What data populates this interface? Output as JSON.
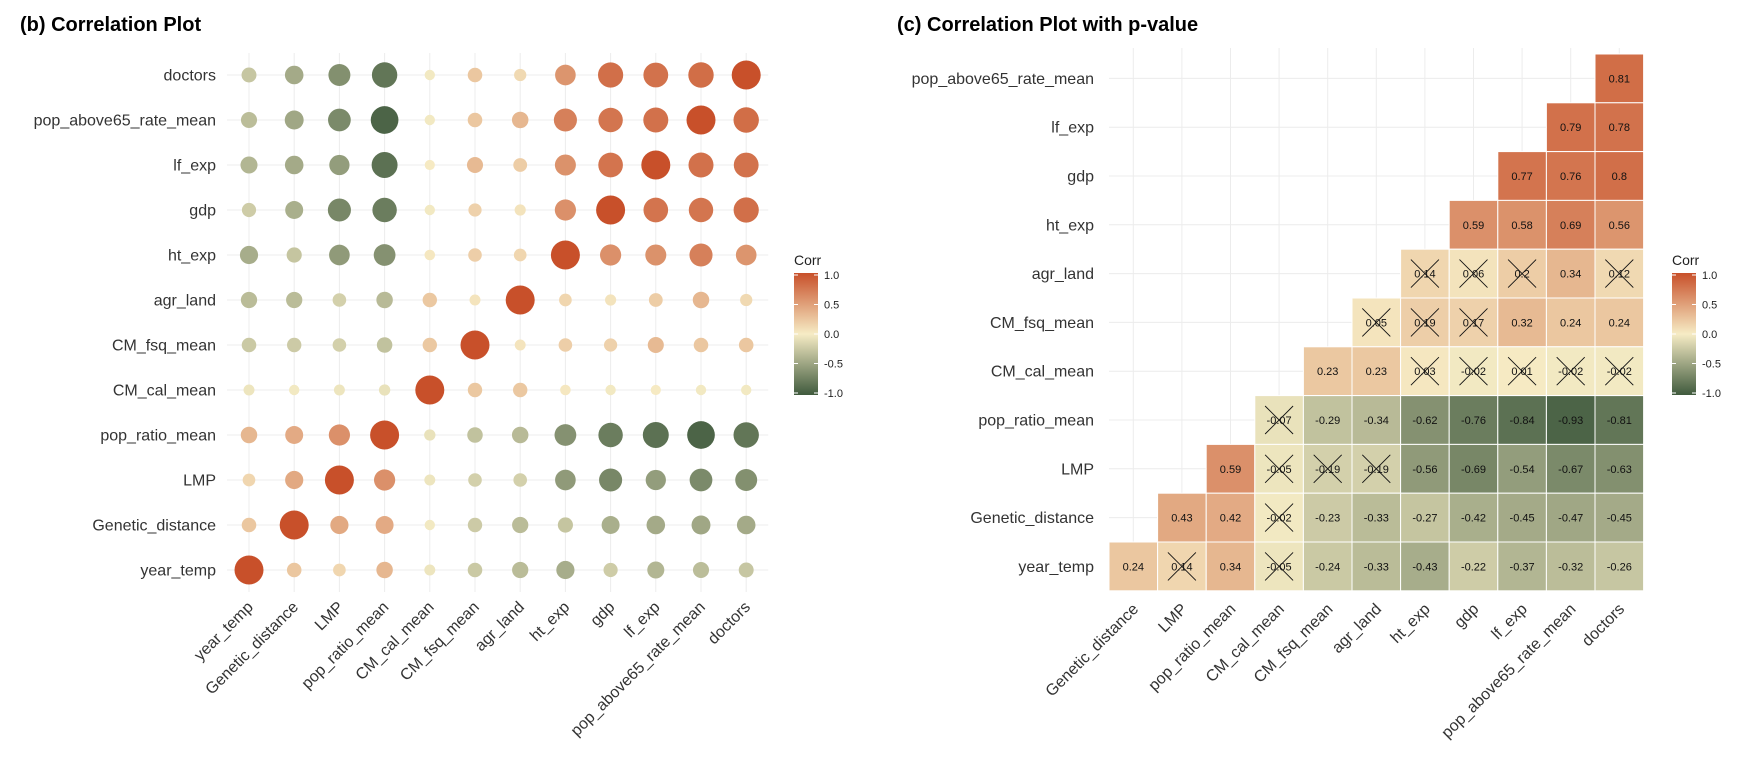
{
  "colors": {
    "low": "#3f5a3d",
    "mid": "#f6ecc5",
    "high": "#c8502a",
    "grid": "#ececec"
  },
  "chart_data": [
    {
      "panel": "b",
      "type": "heatmap",
      "title": "(b) Correlation Plot",
      "rows": [
        "doctors",
        "pop_above65_rate_mean",
        "lf_exp",
        "gdp",
        "ht_exp",
        "agr_land",
        "CM_fsq_mean",
        "CM_cal_mean",
        "pop_ratio_mean",
        "LMP",
        "Genetic_distance",
        "year_temp"
      ],
      "columns": [
        "year_temp",
        "Genetic_distance",
        "LMP",
        "pop_ratio_mean",
        "CM_cal_mean",
        "CM_fsq_mean",
        "agr_land",
        "ht_exp",
        "gdp",
        "lf_exp",
        "pop_above65_rate_mean",
        "doctors"
      ],
      "values": [
        [
          -0.26,
          -0.45,
          -0.63,
          -0.81,
          -0.02,
          0.24,
          0.12,
          0.56,
          0.8,
          0.78,
          0.81,
          1.0
        ],
        [
          -0.32,
          -0.47,
          -0.67,
          -0.93,
          -0.02,
          0.24,
          0.34,
          0.69,
          0.76,
          0.79,
          1.0,
          0.81
        ],
        [
          -0.37,
          -0.45,
          -0.54,
          -0.84,
          0.01,
          0.32,
          0.2,
          0.58,
          0.77,
          1.0,
          0.79,
          0.78
        ],
        [
          -0.22,
          -0.42,
          -0.69,
          -0.76,
          -0.02,
          0.17,
          0.06,
          0.59,
          1.0,
          0.77,
          0.76,
          0.8
        ],
        [
          -0.43,
          -0.27,
          -0.56,
          -0.62,
          0.03,
          0.19,
          0.14,
          1.0,
          0.59,
          0.58,
          0.69,
          0.56
        ],
        [
          -0.33,
          -0.33,
          -0.19,
          -0.34,
          0.23,
          0.05,
          1.0,
          0.14,
          0.06,
          0.2,
          0.34,
          0.12
        ],
        [
          -0.24,
          -0.23,
          -0.19,
          -0.29,
          0.23,
          1.0,
          0.05,
          0.19,
          0.17,
          0.32,
          0.24,
          0.24
        ],
        [
          -0.05,
          -0.02,
          -0.05,
          -0.07,
          1.0,
          0.23,
          0.23,
          0.03,
          -0.02,
          0.01,
          -0.02,
          -0.02
        ],
        [
          0.34,
          0.42,
          0.59,
          1.0,
          -0.07,
          -0.29,
          -0.34,
          -0.62,
          -0.76,
          -0.84,
          -0.93,
          -0.81
        ],
        [
          0.14,
          0.43,
          1.0,
          0.59,
          -0.05,
          -0.19,
          -0.19,
          -0.56,
          -0.69,
          -0.54,
          -0.67,
          -0.63
        ],
        [
          0.24,
          1.0,
          0.43,
          0.42,
          -0.02,
          -0.23,
          -0.33,
          -0.27,
          -0.42,
          -0.45,
          -0.47,
          -0.45
        ],
        [
          1.0,
          0.24,
          0.14,
          0.34,
          -0.05,
          -0.24,
          -0.33,
          -0.43,
          -0.22,
          -0.37,
          -0.32,
          -0.26
        ]
      ],
      "legend": {
        "title": "Corr",
        "ticks": [
          "1.0",
          "0.5",
          "0.0",
          "-0.5",
          "-1.0"
        ],
        "range": [
          -1,
          1
        ]
      }
    },
    {
      "panel": "c",
      "type": "heatmap",
      "title": "(c) Correlation Plot with p-value",
      "rows": [
        "pop_above65_rate_mean",
        "lf_exp",
        "gdp",
        "ht_exp",
        "agr_land",
        "CM_fsq_mean",
        "CM_cal_mean",
        "pop_ratio_mean",
        "LMP",
        "Genetic_distance",
        "year_temp"
      ],
      "columns": [
        "Genetic_distance",
        "LMP",
        "pop_ratio_mean",
        "CM_cal_mean",
        "CM_fsq_mean",
        "agr_land",
        "ht_exp",
        "gdp",
        "lf_exp",
        "pop_above65_rate_mean",
        "doctors"
      ],
      "cells": [
        [
          null,
          null,
          null,
          null,
          null,
          null,
          null,
          null,
          null,
          null,
          "0.81"
        ],
        [
          null,
          null,
          null,
          null,
          null,
          null,
          null,
          null,
          null,
          "0.79",
          "0.78"
        ],
        [
          null,
          null,
          null,
          null,
          null,
          null,
          null,
          null,
          "0.77",
          "0.76",
          "0.8"
        ],
        [
          null,
          null,
          null,
          null,
          null,
          null,
          null,
          "0.59",
          "0.58",
          "0.69",
          "0.56"
        ],
        [
          null,
          null,
          null,
          null,
          null,
          null,
          "0.14",
          "0.06",
          "0.2",
          "0.34",
          "0.12"
        ],
        [
          null,
          null,
          null,
          null,
          null,
          "0.05",
          "0.19",
          "0.17",
          "0.32",
          "0.24",
          "0.24"
        ],
        [
          null,
          null,
          null,
          null,
          "0.23",
          "0.23",
          "0.03",
          "-0.02",
          "0.01",
          "-0.02",
          "-0.02"
        ],
        [
          null,
          null,
          null,
          "-0.07",
          "-0.29",
          "-0.34",
          "-0.62",
          "-0.76",
          "-0.84",
          "-0.93",
          "-0.81"
        ],
        [
          null,
          null,
          "0.59",
          "-0.05",
          "-0.19",
          "-0.19",
          "-0.56",
          "-0.69",
          "-0.54",
          "-0.67",
          "-0.63"
        ],
        [
          null,
          "0.43",
          "0.42",
          "-0.02",
          "-0.23",
          "-0.33",
          "-0.27",
          "-0.42",
          "-0.45",
          "-0.47",
          "-0.45"
        ],
        [
          "0.24",
          "0.14",
          "0.34",
          "-0.05",
          "-0.24",
          "-0.33",
          "-0.43",
          "-0.22",
          "-0.37",
          "-0.32",
          "-0.26"
        ]
      ],
      "insignificant": [
        [
          4,
          6
        ],
        [
          4,
          7
        ],
        [
          4,
          8
        ],
        [
          4,
          10
        ],
        [
          5,
          5
        ],
        [
          5,
          6
        ],
        [
          5,
          7
        ],
        [
          6,
          6
        ],
        [
          6,
          7
        ],
        [
          6,
          8
        ],
        [
          6,
          9
        ],
        [
          6,
          10
        ],
        [
          7,
          3
        ],
        [
          8,
          3
        ],
        [
          8,
          4
        ],
        [
          8,
          5
        ],
        [
          9,
          3
        ],
        [
          10,
          1
        ],
        [
          10,
          3
        ]
      ],
      "legend": {
        "title": "Corr",
        "ticks": [
          "1.0",
          "0.5",
          "0.0",
          "-0.5",
          "-1.0"
        ],
        "range": [
          -1,
          1
        ]
      }
    }
  ]
}
